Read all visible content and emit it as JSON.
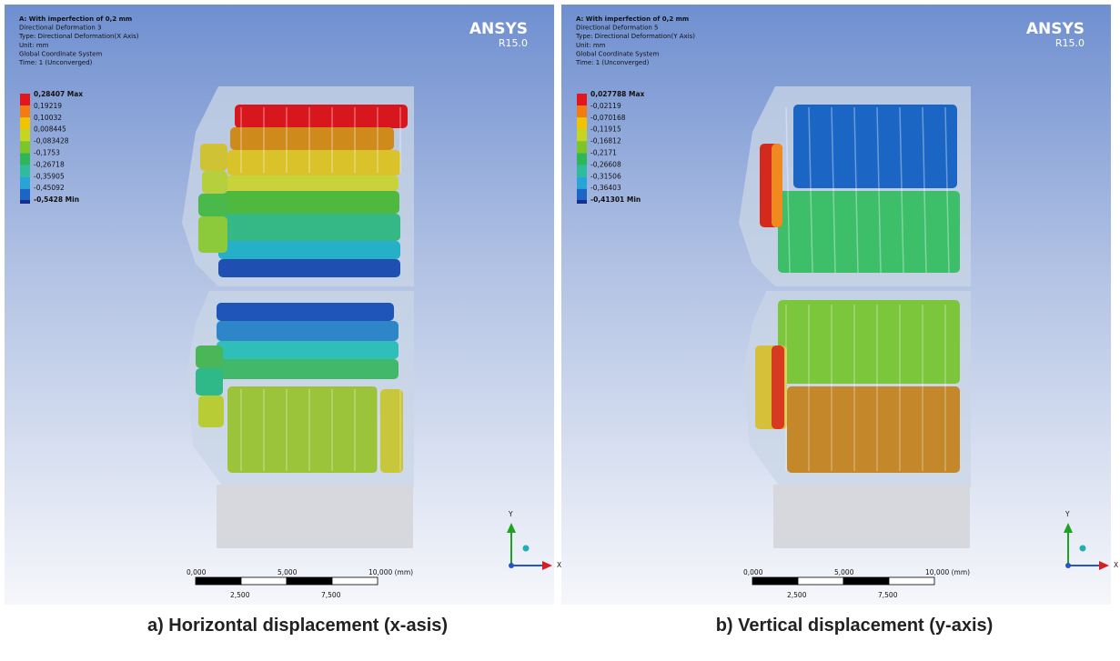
{
  "panels": [
    {
      "header": [
        "A: With imperfection of 0,2 mm",
        "Directional Deformation 3",
        "Type: Directional Deformation(X Axis)",
        "Unit: mm",
        "Global Coordinate System",
        "Time: 1 (Unconverged)"
      ],
      "legend": [
        "0,28407 Max",
        "0,19219",
        "0,10032",
        "0,008445",
        "-0,083428",
        "-0,1753",
        "-0,26718",
        "-0,35905",
        "-0,45092",
        "-0,5428 Min"
      ],
      "logo": "ANSYS",
      "version": "R15.0",
      "scale_top": [
        "0,000",
        "5,000",
        "10,000 (mm)"
      ],
      "scale_bottom": [
        "2,500",
        "7,500"
      ],
      "axis_y": "Y",
      "axis_x": "X",
      "caption": "a)   Horizontal displacement (x-asis)"
    },
    {
      "header": [
        "A: With imperfection of 0,2 mm",
        "Directional Deformation 5",
        "Type: Directional Deformation(Y Axis)",
        "Unit: mm",
        "Global Coordinate System",
        "Time: 1 (Unconverged)"
      ],
      "legend": [
        "0,027788 Max",
        "-0,02119",
        "-0,070168",
        "-0,11915",
        "-0,16812",
        "-0,2171",
        "-0,26608",
        "-0,31506",
        "-0,36403",
        "-0,41301 Min"
      ],
      "logo": "ANSYS",
      "version": "R15.0",
      "scale_top": [
        "0,000",
        "5,000",
        "10,000 (mm)"
      ],
      "scale_bottom": [
        "2,500",
        "7,500"
      ],
      "axis_y": "Y",
      "axis_x": "X",
      "caption": "b)   Vertical displacement (y-axis)"
    }
  ]
}
